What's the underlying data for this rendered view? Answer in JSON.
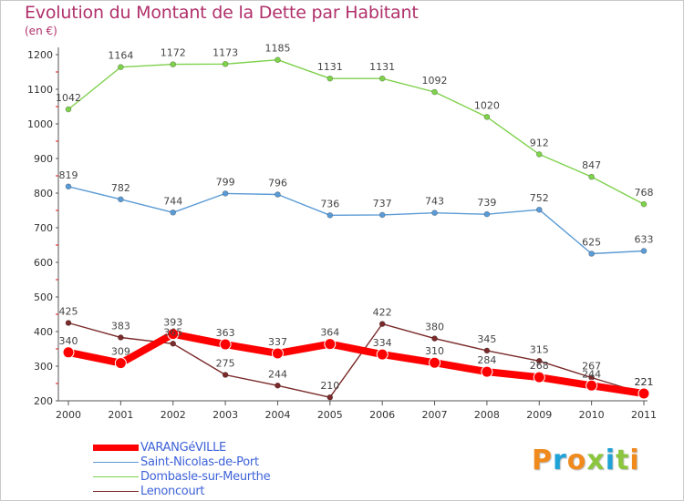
{
  "title": "Evolution du Montant de la Dette par Habitant",
  "subtitle": "(en €)",
  "logo": {
    "text": "Proxiti",
    "colors": [
      "#f08a1d",
      "#1fa2d8",
      "#f08a1d",
      "#8bc63e",
      "#1fa2d8",
      "#8bc63e",
      "#f08a1d"
    ]
  },
  "chart_data": {
    "type": "line",
    "title": "Evolution du Montant de la Dette par Habitant",
    "ylabel": "(en €)",
    "xlabel": "",
    "ylim": [
      200,
      1200
    ],
    "yticks": [
      200,
      300,
      400,
      500,
      600,
      700,
      800,
      900,
      1000,
      1100,
      1200
    ],
    "categories": [
      "2000",
      "2001",
      "2002",
      "2003",
      "2004",
      "2005",
      "2006",
      "2007",
      "2008",
      "2009",
      "2010",
      "2011"
    ],
    "grid": false,
    "legend_position": "bottom-left",
    "series": [
      {
        "name": "VARANGéVILLE",
        "color": "#ff0000",
        "emphasis": true,
        "values": [
          340,
          309,
          393,
          363,
          337,
          364,
          334,
          310,
          284,
          268,
          244,
          221
        ],
        "labels": [
          "340",
          "309",
          "393",
          "363",
          "337",
          "364",
          "334",
          "310",
          "284",
          "268",
          "244",
          "221"
        ]
      },
      {
        "name": "Saint-Nicolas-de-Port",
        "color": "#5b9bd5",
        "values": [
          819,
          782,
          744,
          799,
          796,
          736,
          737,
          743,
          739,
          752,
          625,
          633
        ],
        "labels": [
          "819",
          "782",
          "744",
          "799",
          "796",
          "736",
          "737",
          "743",
          "739",
          "752",
          "625",
          "633"
        ]
      },
      {
        "name": "Dombasle-sur-Meurthe",
        "color": "#7ed14b",
        "values": [
          1042,
          1164,
          1172,
          1173,
          1185,
          1131,
          1131,
          1092,
          1020,
          912,
          847,
          768
        ],
        "labels": [
          "1042",
          "1164",
          "1172",
          "1173",
          "1185",
          "1131",
          "1131",
          "1092",
          "1020",
          "912",
          "847",
          "768"
        ]
      },
      {
        "name": "Lenoncourt",
        "color": "#7a2a2a",
        "values": [
          425,
          383,
          365,
          275,
          244,
          210,
          422,
          380,
          345,
          315,
          267,
          221
        ],
        "labels": [
          "425",
          "383",
          "365",
          "275",
          "244",
          "210",
          "422",
          "380",
          "345",
          "315",
          "267",
          "221"
        ]
      }
    ]
  }
}
